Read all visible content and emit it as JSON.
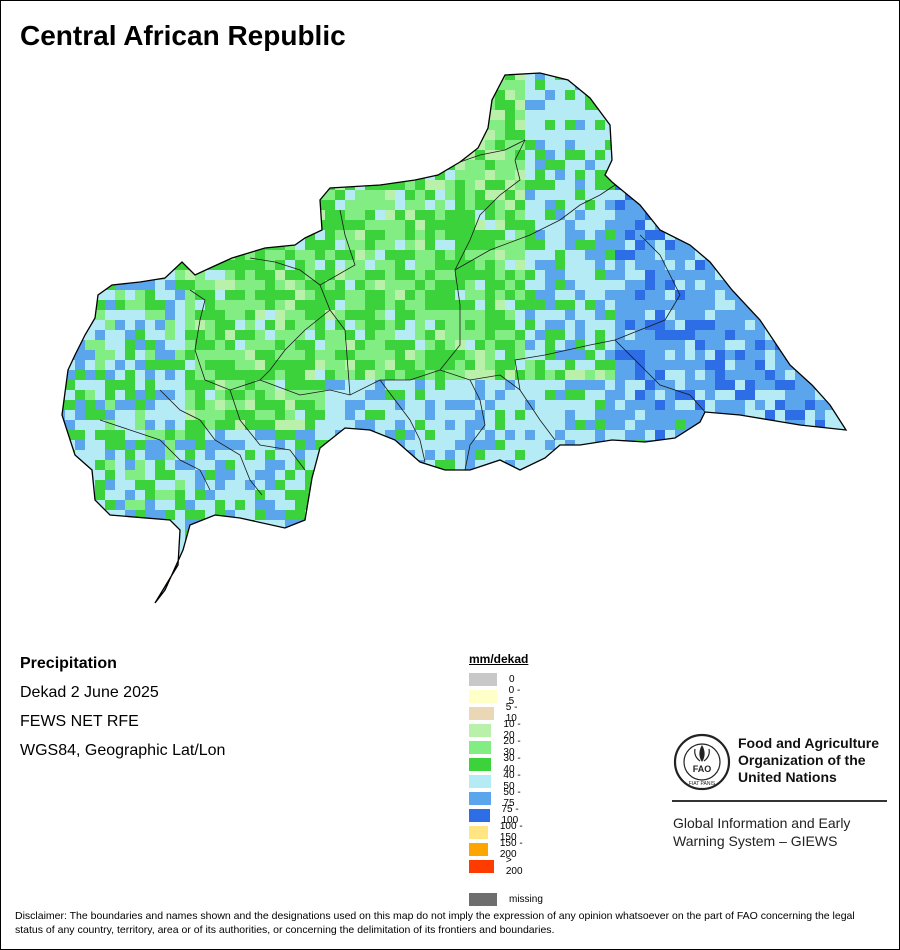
{
  "map": {
    "title": "Central African Republic"
  },
  "info": {
    "heading": "Precipitation",
    "period": "Dekad 2 June 2025",
    "source": "FEWS NET RFE",
    "projection": "WGS84, Geographic Lat/Lon"
  },
  "legend": {
    "unit": "mm/dekad",
    "items": [
      {
        "label": "0",
        "color": "#c8c8c8"
      },
      {
        "label": "0 - 5",
        "color": "#ffffc8"
      },
      {
        "label": "5 - 10",
        "color": "#ead7b5"
      },
      {
        "label": "10 - 20",
        "color": "#b9f0aa"
      },
      {
        "label": "20 - 30",
        "color": "#82ed82"
      },
      {
        "label": "30 - 40",
        "color": "#3cd23c"
      },
      {
        "label": "40 - 50",
        "color": "#b4ebf5"
      },
      {
        "label": "50 - 75",
        "color": "#5aa5eb"
      },
      {
        "label": "75 - 100",
        "color": "#2d6ee6"
      },
      {
        "label": "100 - 150",
        "color": "#ffe682"
      },
      {
        "label": "150 - 200",
        "color": "#ffa500"
      },
      {
        "label": "> 200",
        "color": "#ff3c00"
      },
      {
        "label": "missing",
        "color": "#6e6e6e"
      }
    ]
  },
  "organization": {
    "logo_text": "FAO",
    "logo_motto": "FIAT PANIS",
    "name_line1": "Food and Agriculture",
    "name_line2": "Organization of the",
    "name_line3": "United Nations",
    "program_line1": "Global Information and Early",
    "program_line2": "Warning System – GIEWS"
  },
  "disclaimer": "Disclaimer: The boundaries and names shown and the designations used on this map do not imply the expression of any opinion whatsoever on the part of FAO concerning the legal status of any country, territory, area or of its authorities, or concerning the delimitation of its frontiers and boundaries."
}
